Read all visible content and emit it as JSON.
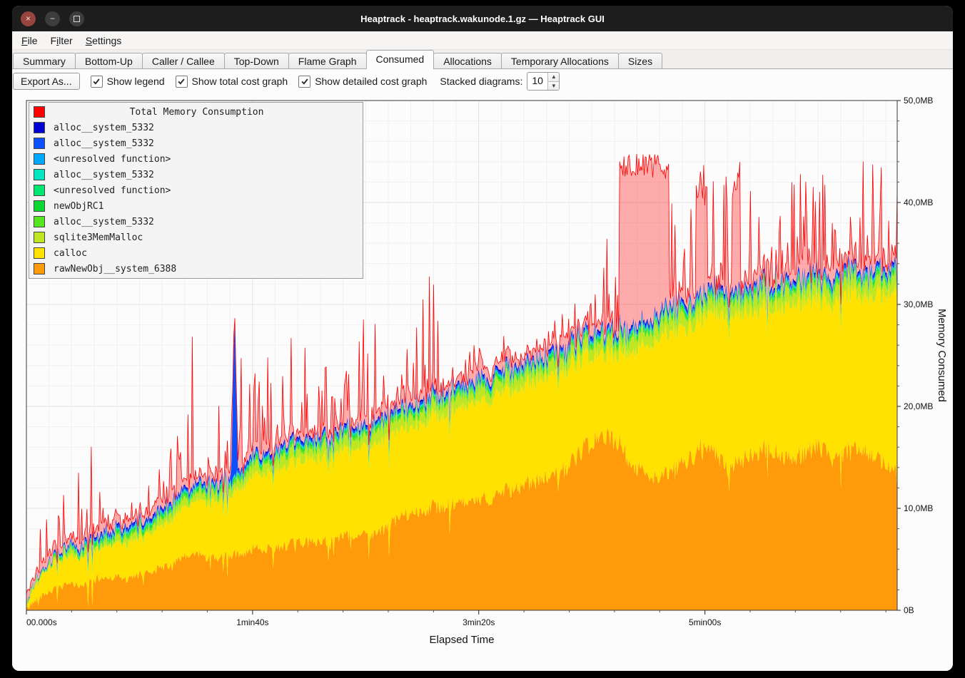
{
  "window": {
    "title": "Heaptrack - heaptrack.wakunode.1.gz — Heaptrack GUI",
    "controls": {
      "close": "×",
      "minimize": "−"
    }
  },
  "menu": {
    "items": [
      {
        "label": "File",
        "accel": 0
      },
      {
        "label": "Filter",
        "accel": 1
      },
      {
        "label": "Settings",
        "accel": 0
      }
    ]
  },
  "tabs": {
    "active": 5,
    "items": [
      {
        "label": "Summary"
      },
      {
        "label": "Bottom-Up"
      },
      {
        "label": "Caller / Callee"
      },
      {
        "label": "Top-Down"
      },
      {
        "label": "Flame Graph"
      },
      {
        "label": "Consumed"
      },
      {
        "label": "Allocations"
      },
      {
        "label": "Temporary Allocations"
      },
      {
        "label": "Sizes"
      }
    ]
  },
  "toolbar": {
    "export_label": "Export As...",
    "checkboxes": [
      {
        "label": "Show legend",
        "checked": true
      },
      {
        "label": "Show total cost graph",
        "checked": true
      },
      {
        "label": "Show detailed cost graph",
        "checked": true
      }
    ],
    "stacked_label": "Stacked diagrams:",
    "stacked_value": "10"
  },
  "chart_data": {
    "type": "area",
    "title": "Total Memory Consumption",
    "xlabel": "Elapsed Time",
    "ylabel": "Memory Consumed",
    "x_range": [
      0,
      385
    ],
    "y_range": [
      0,
      50
    ],
    "seed": 42,
    "grid": {
      "x_minor": 10,
      "x_major": 100,
      "y_minor": 2,
      "y_major": 10,
      "x_tick_minor": 20,
      "y_tick_minor": 2
    },
    "x_ticks": [
      {
        "t": 0,
        "label": "00.000s"
      },
      {
        "t": 100,
        "label": "1min40s"
      },
      {
        "t": 200,
        "label": "3min20s"
      },
      {
        "t": 300,
        "label": "5min00s"
      }
    ],
    "y_ticks": [
      {
        "v": 0,
        "label": "0B"
      },
      {
        "v": 10,
        "label": "10,0MB"
      },
      {
        "v": 20,
        "label": "20,0MB"
      },
      {
        "v": 30,
        "label": "30,0MB"
      },
      {
        "v": 40,
        "label": "40,0MB"
      },
      {
        "v": 50,
        "label": "50,0MB"
      }
    ],
    "legend": [
      {
        "label": "Total Memory Consumption",
        "color": "#ff0000",
        "is_title": true
      },
      {
        "label": "alloc__system_5332",
        "color": "#0000d2"
      },
      {
        "label": "alloc__system_5332",
        "color": "#0a50ff"
      },
      {
        "label": "<unresolved function>",
        "color": "#00a8ff"
      },
      {
        "label": "alloc__system_5332",
        "color": "#00e6be"
      },
      {
        "label": "<unresolved function>",
        "color": "#00e670"
      },
      {
        "label": "newObjRC1",
        "color": "#0fd732"
      },
      {
        "label": "alloc__system_5332",
        "color": "#55e621"
      },
      {
        "label": "sqlite3MemMalloc",
        "color": "#bee622"
      },
      {
        "label": "calloc",
        "color": "#ffe200"
      },
      {
        "label": "rawNewObj__system_6388",
        "color": "#ff9a0a"
      }
    ],
    "series": [
      {
        "name": "rawNewObj__system_6388",
        "color": "#ff9a0a",
        "noise_abs": 0.25,
        "noise_rel": 0.05,
        "dip_prob": 0.05,
        "dip_amp": 3,
        "anchors": [
          [
            0,
            0.1
          ],
          [
            4,
            1.0
          ],
          [
            8,
            1.6
          ],
          [
            12,
            2.0
          ],
          [
            16,
            2.3
          ],
          [
            20,
            2.6
          ],
          [
            25,
            2.4
          ],
          [
            30,
            3.0
          ],
          [
            35,
            3.2
          ],
          [
            40,
            3.3
          ],
          [
            45,
            3.0
          ],
          [
            50,
            3.5
          ],
          [
            55,
            3.8
          ],
          [
            60,
            4.2
          ],
          [
            65,
            4.6
          ],
          [
            70,
            5.2
          ],
          [
            75,
            5.6
          ],
          [
            80,
            5.2
          ],
          [
            85,
            5.0
          ],
          [
            90,
            5.4
          ],
          [
            95,
            5.6
          ],
          [
            100,
            6.0
          ],
          [
            110,
            6.2
          ],
          [
            120,
            6.6
          ],
          [
            130,
            6.8
          ],
          [
            140,
            7.2
          ],
          [
            150,
            7.4
          ],
          [
            158,
            7.8
          ],
          [
            163,
            8.8
          ],
          [
            170,
            9.6
          ],
          [
            180,
            10.2
          ],
          [
            190,
            10.4
          ],
          [
            200,
            10.6
          ],
          [
            205,
            11.0
          ],
          [
            210,
            11.6
          ],
          [
            220,
            12.2
          ],
          [
            230,
            13.0
          ],
          [
            238,
            13.8
          ],
          [
            244,
            15.2
          ],
          [
            250,
            16.6
          ],
          [
            256,
            17.0
          ],
          [
            262,
            16.6
          ],
          [
            266,
            14.8
          ],
          [
            272,
            13.6
          ],
          [
            280,
            13.0
          ],
          [
            286,
            13.8
          ],
          [
            292,
            14.6
          ],
          [
            298,
            16.0
          ],
          [
            302,
            16.4
          ],
          [
            306,
            14.8
          ],
          [
            310,
            13.8
          ],
          [
            316,
            14.6
          ],
          [
            322,
            15.4
          ],
          [
            328,
            16.0
          ],
          [
            334,
            15.2
          ],
          [
            340,
            15.0
          ],
          [
            346,
            15.8
          ],
          [
            352,
            16.2
          ],
          [
            358,
            15.2
          ],
          [
            364,
            15.6
          ],
          [
            370,
            16.0
          ],
          [
            375,
            15.0
          ],
          [
            380,
            14.2
          ],
          [
            385,
            13.8
          ]
        ]
      },
      {
        "name": "calloc",
        "color": "#ffe200",
        "noise_abs": 0.15,
        "noise_rel": 0.01,
        "anchors": [
          [
            0,
            0.2
          ],
          [
            4,
            1.6
          ],
          [
            8,
            2.2
          ],
          [
            12,
            2.5
          ],
          [
            16,
            2.6
          ],
          [
            20,
            2.6
          ],
          [
            30,
            2.9
          ],
          [
            40,
            3.3
          ],
          [
            50,
            3.7
          ],
          [
            60,
            4.1
          ],
          [
            70,
            4.8
          ],
          [
            80,
            5.5
          ],
          [
            90,
            5.8
          ],
          [
            100,
            7.2
          ],
          [
            110,
            7.6
          ],
          [
            120,
            8.0
          ],
          [
            130,
            8.2
          ],
          [
            140,
            8.4
          ],
          [
            150,
            8.6
          ],
          [
            160,
            8.8
          ],
          [
            170,
            8.4
          ],
          [
            180,
            8.8
          ],
          [
            190,
            9.2
          ],
          [
            200,
            9.6
          ],
          [
            210,
            9.8
          ],
          [
            220,
            9.6
          ],
          [
            230,
            10.0
          ],
          [
            240,
            9.6
          ],
          [
            250,
            8.4
          ],
          [
            256,
            8.0
          ],
          [
            262,
            8.6
          ],
          [
            266,
            10.6
          ],
          [
            272,
            12.2
          ],
          [
            280,
            13.8
          ],
          [
            286,
            13.6
          ],
          [
            292,
            13.0
          ],
          [
            298,
            12.6
          ],
          [
            302,
            13.2
          ],
          [
            306,
            14.0
          ],
          [
            310,
            14.8
          ],
          [
            316,
            14.4
          ],
          [
            322,
            14.0
          ],
          [
            328,
            13.8
          ],
          [
            334,
            14.6
          ],
          [
            340,
            15.2
          ],
          [
            346,
            14.6
          ],
          [
            352,
            14.4
          ],
          [
            358,
            15.2
          ],
          [
            364,
            15.4
          ],
          [
            370,
            15.0
          ],
          [
            375,
            15.8
          ],
          [
            380,
            16.8
          ],
          [
            385,
            17.8
          ]
        ]
      },
      {
        "name": "sqlite3MemMalloc",
        "color": "#bee622",
        "noise_abs": 0.5,
        "anchors": [
          [
            0,
            0.05
          ],
          [
            20,
            0.4
          ],
          [
            60,
            0.6
          ],
          [
            100,
            0.9
          ],
          [
            160,
            1.1
          ],
          [
            220,
            1.1
          ],
          [
            280,
            1.3
          ],
          [
            385,
            1.3
          ]
        ]
      },
      {
        "name": "alloc__system_5332_c",
        "color": "#55e621",
        "noise_abs": 0.1,
        "anchors": [
          [
            0,
            0.03
          ],
          [
            30,
            0.25
          ],
          [
            385,
            0.3
          ]
        ]
      },
      {
        "name": "newObjRC1",
        "color": "#0fd732",
        "noise_abs": 0.05,
        "anchors": [
          [
            0,
            0.02
          ],
          [
            30,
            0.15
          ],
          [
            385,
            0.18
          ]
        ]
      },
      {
        "name": "unresolved_function_b",
        "color": "#00e670",
        "noise_abs": 0.04,
        "anchors": [
          [
            0,
            0.02
          ],
          [
            30,
            0.12
          ],
          [
            385,
            0.14
          ]
        ]
      },
      {
        "name": "alloc__system_5332_b",
        "color": "#00e6be",
        "noise_abs": 0.03,
        "anchors": [
          [
            0,
            0.01
          ],
          [
            30,
            0.08
          ],
          [
            385,
            0.1
          ]
        ]
      },
      {
        "name": "unresolved_function_a",
        "color": "#00a8ff",
        "noise_abs": 0.03,
        "anchors": [
          [
            0,
            0.01
          ],
          [
            30,
            0.08
          ],
          [
            385,
            0.1
          ]
        ]
      },
      {
        "name": "alloc__system_5332_a",
        "color": "#0a50ff",
        "noise_abs": 0.05,
        "spikes": [
          {
            "t": 92,
            "extra": 16,
            "w": 1.5
          }
        ],
        "anchors": [
          [
            0,
            0.02
          ],
          [
            30,
            0.22
          ],
          [
            385,
            0.26
          ]
        ]
      },
      {
        "name": "alloc__system_5332",
        "color": "#0000d2",
        "noise_abs": 0.04,
        "anchors": [
          [
            0,
            0.02
          ],
          [
            30,
            0.16
          ],
          [
            385,
            0.2
          ]
        ]
      }
    ],
    "total": {
      "name": "Total Memory Consumption",
      "color": "#ff0000",
      "fill_alpha": 0.32,
      "base_extra": 0.35,
      "base_noise": 0.7,
      "spike_prob": [
        0.22,
        0.38
      ],
      "plateaus": [
        [
          262,
          284,
          44.8
        ],
        [
          296,
          301,
          42.0
        ],
        [
          312,
          315,
          43.0
        ]
      ],
      "spike_max": [
        [
          0,
          6
        ],
        [
          10,
          12
        ],
        [
          20,
          14
        ],
        [
          28,
          17
        ],
        [
          36,
          14
        ],
        [
          44,
          12
        ],
        [
          52,
          13
        ],
        [
          60,
          15
        ],
        [
          68,
          18
        ],
        [
          74,
          33
        ],
        [
          78,
          22
        ],
        [
          84,
          20
        ],
        [
          90,
          24
        ],
        [
          96,
          28
        ],
        [
          100,
          29
        ],
        [
          104,
          25
        ],
        [
          110,
          28
        ],
        [
          114,
          31
        ],
        [
          120,
          30
        ],
        [
          126,
          26
        ],
        [
          132,
          27
        ],
        [
          138,
          25
        ],
        [
          144,
          27
        ],
        [
          150,
          29
        ],
        [
          156,
          28
        ],
        [
          162,
          26
        ],
        [
          168,
          26
        ],
        [
          174,
          30
        ],
        [
          178,
          36
        ],
        [
          184,
          28
        ],
        [
          190,
          27
        ],
        [
          196,
          26
        ],
        [
          202,
          26
        ],
        [
          208,
          28
        ],
        [
          214,
          26
        ],
        [
          220,
          25
        ],
        [
          226,
          26
        ],
        [
          232,
          28
        ],
        [
          238,
          30
        ],
        [
          242,
          32
        ],
        [
          248,
          31
        ],
        [
          254,
          34
        ],
        [
          258,
          38
        ],
        [
          262,
          45
        ],
        [
          270,
          46
        ],
        [
          278,
          46.5
        ],
        [
          284,
          45
        ],
        [
          290,
          40
        ],
        [
          296,
          43
        ],
        [
          300,
          46
        ],
        [
          306,
          40
        ],
        [
          310,
          44
        ],
        [
          316,
          44
        ],
        [
          322,
          43
        ],
        [
          328,
          45
        ],
        [
          334,
          46
        ],
        [
          340,
          44
        ],
        [
          346,
          43
        ],
        [
          352,
          45
        ],
        [
          358,
          46
        ],
        [
          364,
          44
        ],
        [
          370,
          46
        ],
        [
          376,
          44
        ],
        [
          380,
          43
        ],
        [
          385,
          46
        ]
      ]
    }
  }
}
